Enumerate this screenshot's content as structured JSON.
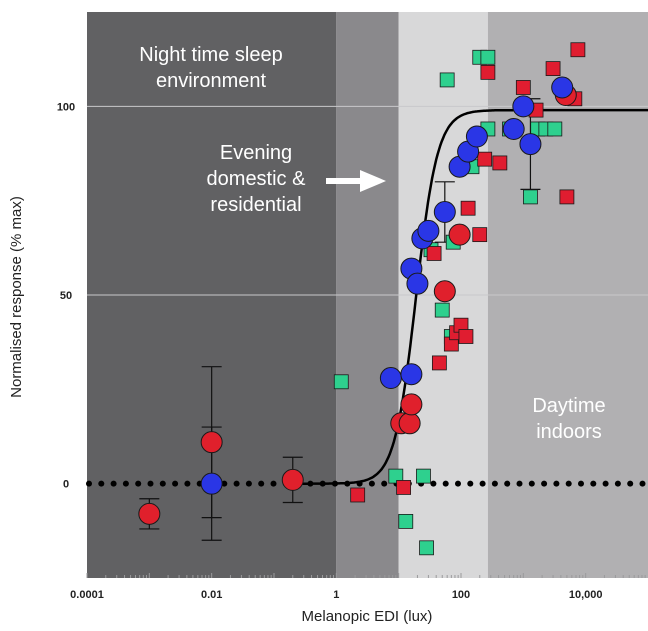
{
  "chart_data": {
    "type": "scatter",
    "xlabel": "Melanopic EDI (lux)",
    "ylabel": "Normalised response (% max)",
    "x_scale": "log",
    "xlim": [
      0.0001,
      100000
    ],
    "ylim": [
      -25,
      125
    ],
    "x_ticks": [
      {
        "value": 0.0001,
        "label": "0.0001"
      },
      {
        "value": 0.01,
        "label": "0.01"
      },
      {
        "value": 1,
        "label": "1"
      },
      {
        "value": 100,
        "label": "100"
      },
      {
        "value": 10000,
        "label": "10,000"
      }
    ],
    "y_ticks": [
      {
        "value": 0,
        "label": "0"
      },
      {
        "value": 50,
        "label": "50"
      },
      {
        "value": 100,
        "label": "100"
      }
    ],
    "gridlines_y": [
      50,
      100
    ],
    "zones": [
      {
        "label": "Night time sleep environment",
        "from": 0.0001,
        "to": 1,
        "color": "#616163",
        "text_color": "#ffffff"
      },
      {
        "label": "Evening domestic & residential",
        "from": 1,
        "to": 10,
        "color": "#8a898c",
        "text_color": "#ffffff"
      },
      {
        "label": "",
        "from": 10,
        "to": 270,
        "color": "#d8d8d9",
        "text_color": "#ffffff"
      },
      {
        "label": "Daytime indoors",
        "from": 270,
        "to": 100000,
        "color": "#b1b0b2",
        "text_color": "#ffffff"
      }
    ],
    "fit_curve": {
      "type": "sigmoid",
      "bottom": 0,
      "top": 99,
      "ec50_lux": 19,
      "hill_slope": 1.05,
      "color": "#000000"
    },
    "baseline": {
      "y": 0,
      "style": "dotted",
      "color": "#000000"
    },
    "series": [
      {
        "marker": "circle",
        "color": "#2a36e6",
        "points": [
          {
            "x": 0.01,
            "y": 0,
            "err": 15
          },
          {
            "x": 7.5,
            "y": 28
          },
          {
            "x": 16,
            "y": 29
          },
          {
            "x": 16,
            "y": 57
          },
          {
            "x": 20,
            "y": 53
          },
          {
            "x": 24,
            "y": 65
          },
          {
            "x": 30,
            "y": 67
          },
          {
            "x": 55,
            "y": 72,
            "err": 8
          },
          {
            "x": 95,
            "y": 84
          },
          {
            "x": 130,
            "y": 88
          },
          {
            "x": 180,
            "y": 92
          },
          {
            "x": 700,
            "y": 94
          },
          {
            "x": 1000,
            "y": 100
          },
          {
            "x": 1300,
            "y": 90,
            "err": 12
          },
          {
            "x": 4200,
            "y": 105
          }
        ]
      },
      {
        "marker": "circle",
        "color": "#e0202c",
        "points": [
          {
            "x": 0.001,
            "y": -8,
            "err": 4
          },
          {
            "x": 0.01,
            "y": 11,
            "err": 20
          },
          {
            "x": 0.2,
            "y": 1,
            "err": 6
          },
          {
            "x": 11,
            "y": 16
          },
          {
            "x": 15,
            "y": 16
          },
          {
            "x": 16,
            "y": 21
          },
          {
            "x": 55,
            "y": 51
          },
          {
            "x": 95,
            "y": 66
          },
          {
            "x": 4800,
            "y": 103
          }
        ]
      },
      {
        "marker": "square",
        "color": "#e01d30",
        "points": [
          {
            "x": 2.2,
            "y": -3
          },
          {
            "x": 12,
            "y": -1
          },
          {
            "x": 37,
            "y": 61
          },
          {
            "x": 45,
            "y": 32
          },
          {
            "x": 70,
            "y": 37
          },
          {
            "x": 85,
            "y": 40
          },
          {
            "x": 100,
            "y": 42
          },
          {
            "x": 120,
            "y": 39
          },
          {
            "x": 130,
            "y": 73
          },
          {
            "x": 200,
            "y": 66
          },
          {
            "x": 240,
            "y": 86
          },
          {
            "x": 270,
            "y": 109
          },
          {
            "x": 420,
            "y": 85
          },
          {
            "x": 1000,
            "y": 105
          },
          {
            "x": 1600,
            "y": 99
          },
          {
            "x": 3000,
            "y": 110
          },
          {
            "x": 5000,
            "y": 76
          },
          {
            "x": 6700,
            "y": 102
          },
          {
            "x": 7500,
            "y": 115
          }
        ]
      },
      {
        "marker": "square",
        "color": "#2ed08e",
        "points": [
          {
            "x": 1.2,
            "y": 27
          },
          {
            "x": 9,
            "y": 2
          },
          {
            "x": 13,
            "y": -10
          },
          {
            "x": 25,
            "y": 2
          },
          {
            "x": 28,
            "y": -17
          },
          {
            "x": 33,
            "y": 62
          },
          {
            "x": 50,
            "y": 46
          },
          {
            "x": 60,
            "y": 107
          },
          {
            "x": 70,
            "y": 39
          },
          {
            "x": 75,
            "y": 64
          },
          {
            "x": 150,
            "y": 84
          },
          {
            "x": 200,
            "y": 113
          },
          {
            "x": 270,
            "y": 113
          },
          {
            "x": 270,
            "y": 94
          },
          {
            "x": 600,
            "y": 94
          },
          {
            "x": 1300,
            "y": 76
          },
          {
            "x": 1700,
            "y": 94
          },
          {
            "x": 2300,
            "y": 94
          },
          {
            "x": 3200,
            "y": 94
          }
        ]
      }
    ]
  }
}
